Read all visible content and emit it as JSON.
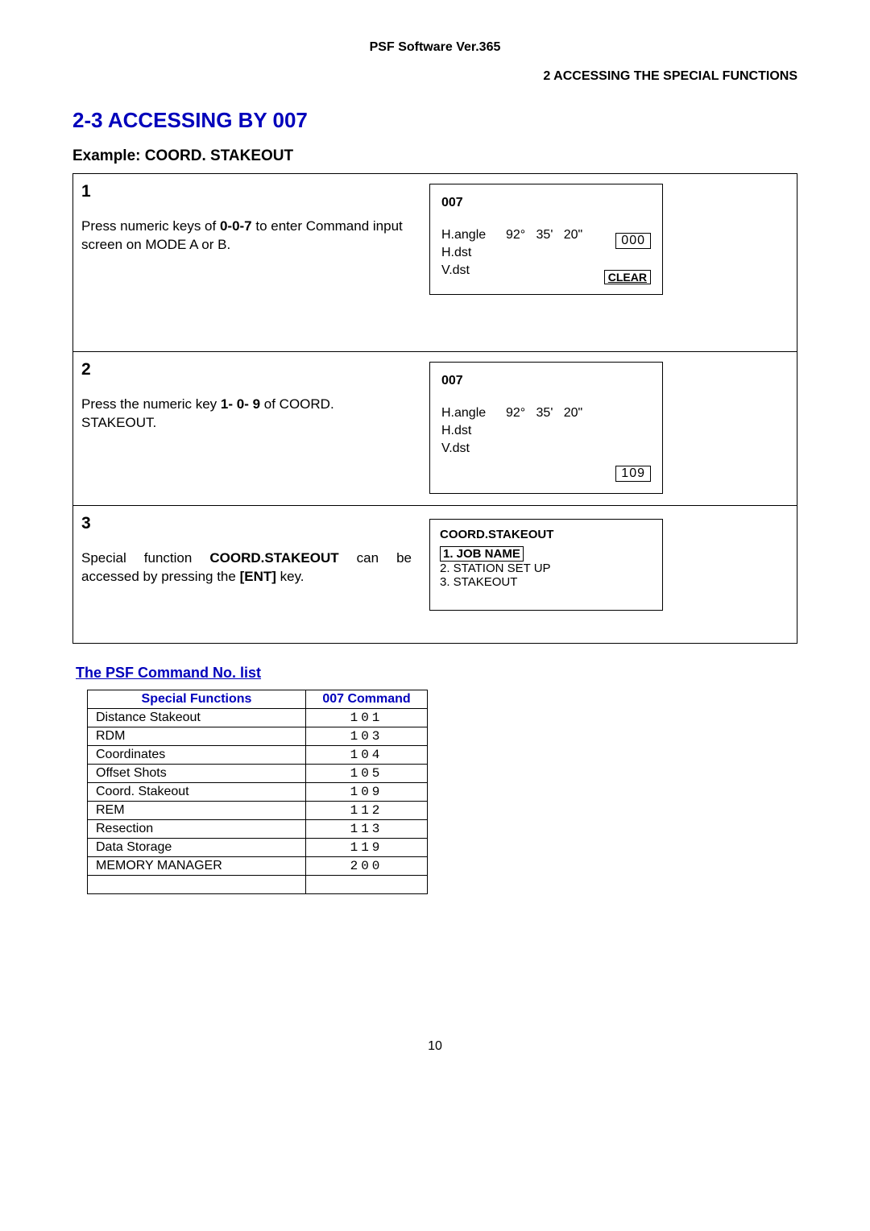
{
  "header": {
    "center": "PSF Software Ver.365",
    "right": "2    ACCESSING THE SPECIAL FUNCTIONS"
  },
  "title": "2-3 ACCESSING BY 007",
  "subtitle": "Example: COORD. STAKEOUT",
  "steps": [
    {
      "num": "1",
      "text_pre": "Press numeric keys of   ",
      "text_bold": "0-0-7",
      "text_post": " to enter Command input screen on MODE A or B.",
      "screen": {
        "title": "007",
        "hangle_lab": "H.angle",
        "hangle_val": "92°   35'   20\"",
        "hdst": "H.dst",
        "vdst": "V.dst",
        "val": "000",
        "clear": "CLEAR"
      }
    },
    {
      "num": "2",
      "text_pre": "Press the numeric key ",
      "text_bold": "1- 0- 9",
      "text_post": " of COORD. STAKEOUT.",
      "screen": {
        "title": "007",
        "hangle_lab": "H.angle",
        "hangle_val": "92°   35'   20\"",
        "hdst": "H.dst",
        "vdst": "V.dst",
        "val": "109"
      }
    },
    {
      "num": "3",
      "text_pre": "Special  function  ",
      "text_bold": "COORD.STAKEOUT",
      "text_mid": "  can  be accessed by pressing the ",
      "text_bold2": "[ENT]",
      "text_post": " key.",
      "screen": {
        "title": "COORD.STAKEOUT",
        "opt1": "1. JOB NAME",
        "opt2": "2. STATION SET UP",
        "opt3": "3. STAKEOUT"
      }
    }
  ],
  "list_heading": "The PSF Command No. list",
  "table": {
    "headers": [
      "Special Functions",
      "007 Command"
    ],
    "rows": [
      [
        "Distance Stakeout",
        "101"
      ],
      [
        "RDM",
        "103"
      ],
      [
        "Coordinates",
        "104"
      ],
      [
        "Offset Shots",
        "105"
      ],
      [
        "Coord. Stakeout",
        "109"
      ],
      [
        "REM",
        "112"
      ],
      [
        "Resection",
        "113"
      ],
      [
        "Data Storage",
        "119"
      ],
      [
        "MEMORY MANAGER",
        "200"
      ],
      [
        "",
        ""
      ]
    ]
  },
  "page_number": "10"
}
